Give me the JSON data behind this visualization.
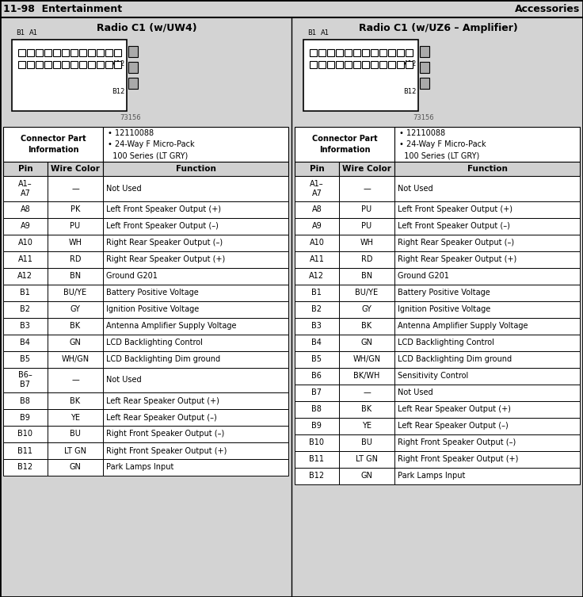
{
  "header_left": "11-98  Entertainment",
  "header_right": "Accessories",
  "bg_color": "#d3d3d3",
  "table_bg": "#ffffff",
  "header_bg": "#c0c0c0",
  "border_color": "#000000",
  "left_title": "Radio C1 (w/UW4)",
  "right_title": "Radio C1 (w/UZ6 – Amplifier)",
  "connector_info_title": "Connector Part\nInformation",
  "connector_bullets": "• 12110088\n• 24-Way F Micro-Pack\n  100 Series (LT GRY)",
  "col_headers": [
    "Pin",
    "Wire Color",
    "Function"
  ],
  "left_rows": [
    [
      "A1–\nA7",
      "—",
      "Not Used"
    ],
    [
      "A8",
      "PK",
      "Left Front Speaker Output (+)"
    ],
    [
      "A9",
      "PU",
      "Left Front Speaker Output (–)"
    ],
    [
      "A10",
      "WH",
      "Right Rear Speaker Output (–)"
    ],
    [
      "A11",
      "RD",
      "Right Rear Speaker Output (+)"
    ],
    [
      "A12",
      "BN",
      "Ground G201"
    ],
    [
      "B1",
      "BU/YE",
      "Battery Positive Voltage"
    ],
    [
      "B2",
      "GY",
      "Ignition Positive Voltage"
    ],
    [
      "B3",
      "BK",
      "Antenna Amplifier Supply Voltage"
    ],
    [
      "B4",
      "GN",
      "LCD Backlighting Control"
    ],
    [
      "B5",
      "WH/GN",
      "LCD Backlighting Dim ground"
    ],
    [
      "B6–\nB7",
      "—",
      "Not Used"
    ],
    [
      "B8",
      "BK",
      "Left Rear Speaker Output (+)"
    ],
    [
      "B9",
      "YE",
      "Left Rear Speaker Output (–)"
    ],
    [
      "B10",
      "BU",
      "Right Front Speaker Output (–)"
    ],
    [
      "B11",
      "LT GN",
      "Right Front Speaker Output (+)"
    ],
    [
      "B12",
      "GN",
      "Park Lamps Input"
    ]
  ],
  "right_rows": [
    [
      "A1–\nA7",
      "—",
      "Not Used"
    ],
    [
      "A8",
      "PU",
      "Left Front Speaker Output (+)"
    ],
    [
      "A9",
      "PU",
      "Left Front Speaker Output (–)"
    ],
    [
      "A10",
      "WH",
      "Right Rear Speaker Output (–)"
    ],
    [
      "A11",
      "RD",
      "Right Rear Speaker Output (+)"
    ],
    [
      "A12",
      "BN",
      "Ground G201"
    ],
    [
      "B1",
      "BU/YE",
      "Battery Positive Voltage"
    ],
    [
      "B2",
      "GY",
      "Ignition Positive Voltage"
    ],
    [
      "B3",
      "BK",
      "Antenna Amplifier Supply Voltage"
    ],
    [
      "B4",
      "GN",
      "LCD Backlighting Control"
    ],
    [
      "B5",
      "WH/GN",
      "LCD Backlighting Dim ground"
    ],
    [
      "B6",
      "BK/WH",
      "Sensitivity Control"
    ],
    [
      "B7",
      "—",
      "Not Used"
    ],
    [
      "B8",
      "BK",
      "Left Rear Speaker Output (+)"
    ],
    [
      "B9",
      "YE",
      "Left Rear Speaker Output (–)"
    ],
    [
      "B10",
      "BU",
      "Right Front Speaker Output (–)"
    ],
    [
      "B11",
      "LT GN",
      "Right Front Speaker Output (+)"
    ],
    [
      "B12",
      "GN",
      "Park Lamps Input"
    ]
  ]
}
